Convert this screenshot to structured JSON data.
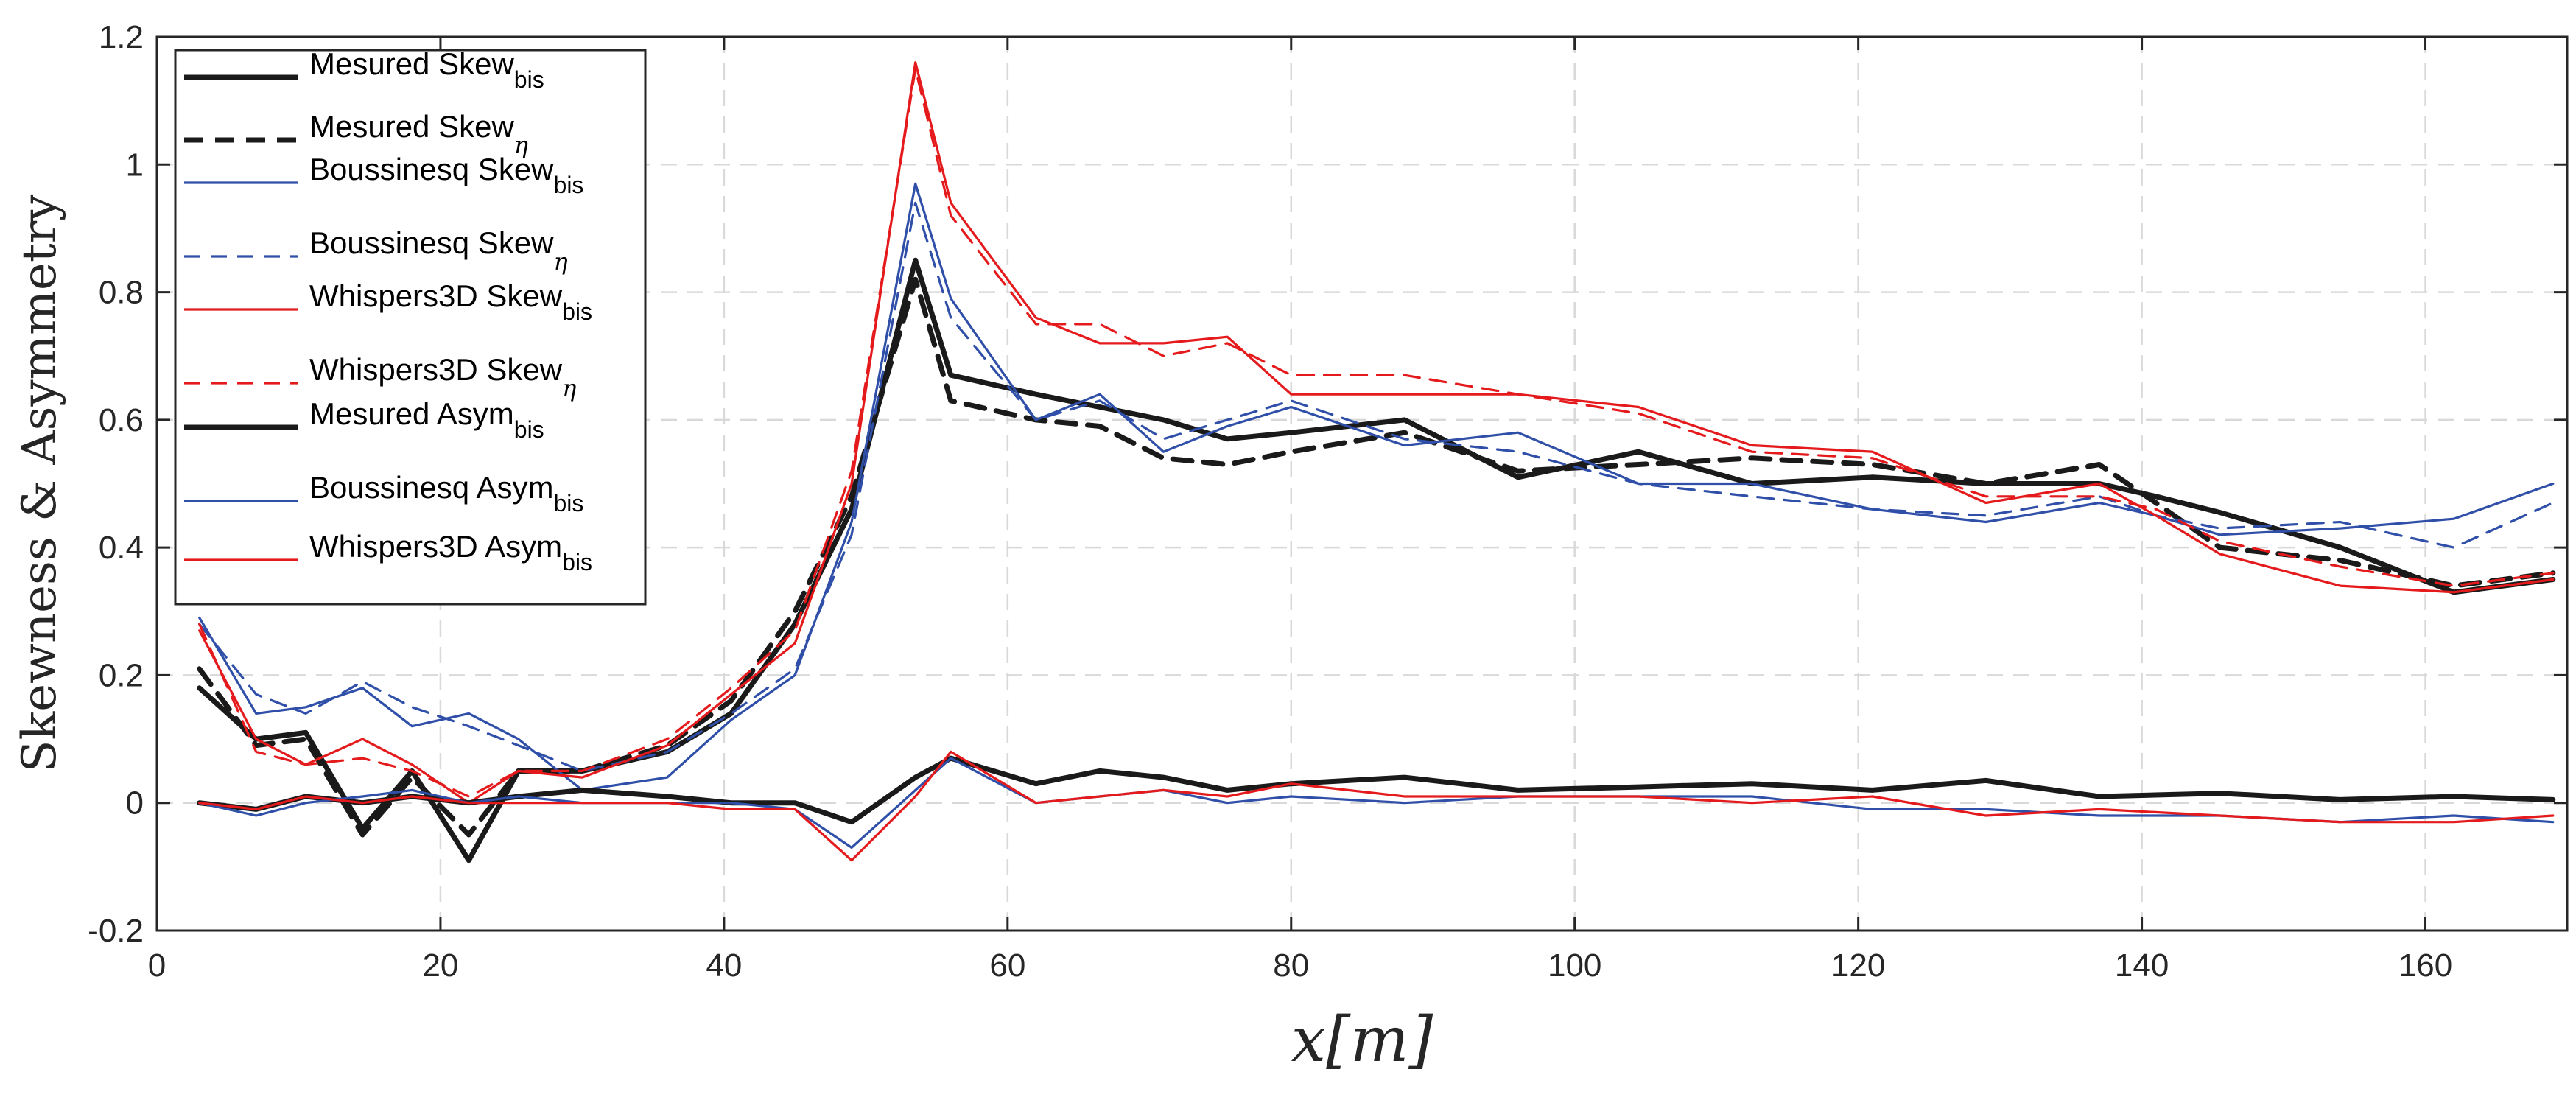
{
  "chart_data": {
    "type": "line",
    "title": "",
    "xlabel": "x[m]",
    "ylabel": "Skewness & Asymmetry",
    "xlim": [
      0,
      170
    ],
    "ylim": [
      -0.2,
      1.2
    ],
    "xticks": [
      "0",
      "20",
      "40",
      "60",
      "80",
      "100",
      "120",
      "140",
      "160"
    ],
    "xtick_values": [
      0,
      20,
      40,
      60,
      80,
      100,
      120,
      140,
      160
    ],
    "yticks": [
      "-0.2",
      "0",
      "0.2",
      "0.4",
      "0.6",
      "0.8",
      "1",
      "1.2"
    ],
    "ytick_values": [
      -0.2,
      0,
      0.2,
      0.4,
      0.6,
      0.8,
      1.0,
      1.2
    ],
    "grid": true,
    "legend_position": "top-left",
    "colors": {
      "measured": "#1a1a1a",
      "boussinesq": "#2f4fa8",
      "whispers": "#e41a1c",
      "grid": "#d9d9d9",
      "axis": "#262626"
    },
    "series": [
      {
        "name": "Mesured Skew",
        "sub": "bis",
        "color": "#1a1a1a",
        "dash": "solid",
        "width": "thick",
        "x": [
          3,
          7,
          10.5,
          14.5,
          18,
          22,
          25.5,
          30,
          36,
          40.5,
          45,
          49,
          53.5,
          56,
          62,
          66.5,
          71,
          75.5,
          80,
          88,
          96,
          104.5,
          112.5,
          121,
          129,
          137,
          141,
          145.5,
          154,
          162,
          169
        ],
        "values": [
          0.18,
          0.1,
          0.11,
          -0.04,
          0.05,
          -0.09,
          0.05,
          0.05,
          0.08,
          0.14,
          0.28,
          0.46,
          0.85,
          0.67,
          0.64,
          0.62,
          0.6,
          0.57,
          0.58,
          0.6,
          0.51,
          0.55,
          0.5,
          0.51,
          0.5,
          0.5,
          0.48,
          0.455,
          0.4,
          0.33,
          0.35
        ]
      },
      {
        "name": "Mesured Skew",
        "sub": "η",
        "color": "#1a1a1a",
        "dash": "dashed",
        "width": "thick",
        "x": [
          3,
          7,
          10.5,
          14.5,
          18,
          22,
          25.5,
          30,
          36,
          40.5,
          45,
          49,
          53.5,
          56,
          62,
          66.5,
          71,
          75.5,
          80,
          88,
          96,
          104.5,
          112.5,
          121,
          129,
          137,
          141,
          145.5,
          154,
          162,
          169
        ],
        "values": [
          0.21,
          0.09,
          0.1,
          -0.05,
          0.04,
          -0.05,
          0.05,
          0.05,
          0.09,
          0.16,
          0.3,
          0.48,
          0.82,
          0.63,
          0.6,
          0.59,
          0.54,
          0.53,
          0.55,
          0.58,
          0.52,
          0.53,
          0.54,
          0.53,
          0.5,
          0.53,
          0.47,
          0.4,
          0.38,
          0.34,
          0.36
        ]
      },
      {
        "name": "Boussinesq Skew",
        "sub": "bis",
        "color": "#2f4fa8",
        "dash": "solid",
        "width": "thin",
        "x": [
          3,
          7,
          10.5,
          14.5,
          18,
          22,
          25.5,
          30,
          36,
          40.5,
          45,
          49,
          53.5,
          56,
          62,
          66.5,
          71,
          75.5,
          80,
          88,
          96,
          104.5,
          112.5,
          121,
          129,
          137,
          141,
          145.5,
          154,
          162,
          169
        ],
        "values": [
          0.29,
          0.14,
          0.15,
          0.18,
          0.12,
          0.14,
          0.1,
          0.02,
          0.04,
          0.13,
          0.2,
          0.44,
          0.97,
          0.79,
          0.6,
          0.64,
          0.55,
          0.59,
          0.62,
          0.56,
          0.58,
          0.5,
          0.5,
          0.46,
          0.44,
          0.47,
          0.45,
          0.42,
          0.43,
          0.445,
          0.5
        ]
      },
      {
        "name": "Boussinesq Skew",
        "sub": "η",
        "color": "#2f4fa8",
        "dash": "dashed",
        "width": "thin",
        "x": [
          3,
          7,
          10.5,
          14.5,
          18,
          22,
          25.5,
          30,
          36,
          40.5,
          45,
          49,
          53.5,
          56,
          62,
          66.5,
          71,
          75.5,
          80,
          88,
          96,
          104.5,
          112.5,
          121,
          129,
          137,
          141,
          145.5,
          154,
          162,
          169
        ],
        "values": [
          0.28,
          0.17,
          0.14,
          0.19,
          0.15,
          0.12,
          0.09,
          0.05,
          0.08,
          0.14,
          0.21,
          0.42,
          0.94,
          0.76,
          0.6,
          0.63,
          0.57,
          0.6,
          0.63,
          0.57,
          0.55,
          0.5,
          0.48,
          0.46,
          0.45,
          0.48,
          0.45,
          0.43,
          0.44,
          0.4,
          0.47
        ]
      },
      {
        "name": "Whispers3D Skew",
        "sub": "bis",
        "color": "#e41a1c",
        "dash": "solid",
        "width": "thin",
        "x": [
          3,
          7,
          10.5,
          14.5,
          18,
          22,
          25.5,
          30,
          36,
          40.5,
          45,
          49,
          53.5,
          56,
          62,
          66.5,
          71,
          75.5,
          80,
          88,
          96,
          104.5,
          112.5,
          121,
          129,
          137,
          141,
          145.5,
          154,
          162,
          169
        ],
        "values": [
          0.27,
          0.1,
          0.06,
          0.1,
          0.06,
          0.0,
          0.05,
          0.04,
          0.09,
          0.17,
          0.25,
          0.5,
          1.16,
          0.94,
          0.76,
          0.72,
          0.72,
          0.73,
          0.64,
          0.64,
          0.64,
          0.62,
          0.56,
          0.55,
          0.47,
          0.5,
          0.45,
          0.39,
          0.34,
          0.33,
          0.35
        ]
      },
      {
        "name": "Whispers3D Skew",
        "sub": "η",
        "color": "#e41a1c",
        "dash": "dashed",
        "width": "thin",
        "x": [
          3,
          7,
          10.5,
          14.5,
          18,
          22,
          25.5,
          30,
          36,
          40.5,
          45,
          49,
          53.5,
          56,
          62,
          66.5,
          71,
          75.5,
          80,
          88,
          96,
          104.5,
          112.5,
          121,
          129,
          137,
          141,
          145.5,
          154,
          162,
          169
        ],
        "values": [
          0.28,
          0.08,
          0.06,
          0.07,
          0.05,
          0.01,
          0.05,
          0.05,
          0.1,
          0.18,
          0.27,
          0.52,
          1.15,
          0.92,
          0.75,
          0.75,
          0.7,
          0.72,
          0.67,
          0.67,
          0.64,
          0.61,
          0.55,
          0.54,
          0.48,
          0.48,
          0.46,
          0.41,
          0.37,
          0.34,
          0.36
        ]
      },
      {
        "name": "Mesured Asym",
        "sub": "bis",
        "color": "#1a1a1a",
        "dash": "solid",
        "width": "thick",
        "x": [
          3,
          7,
          10.5,
          14.5,
          18,
          22,
          25.5,
          30,
          36,
          40.5,
          45,
          49,
          53.5,
          56,
          62,
          66.5,
          71,
          75.5,
          80,
          88,
          96,
          104.5,
          112.5,
          121,
          129,
          137,
          145.5,
          154,
          162,
          169
        ],
        "values": [
          0.0,
          -0.01,
          0.01,
          0.0,
          0.01,
          0.0,
          0.01,
          0.02,
          0.01,
          0.0,
          0.0,
          -0.03,
          0.04,
          0.07,
          0.03,
          0.05,
          0.04,
          0.02,
          0.03,
          0.04,
          0.02,
          0.025,
          0.03,
          0.02,
          0.035,
          0.01,
          0.015,
          0.005,
          0.01,
          0.005
        ]
      },
      {
        "name": "Boussinesq Asym",
        "sub": "bis",
        "color": "#2f4fa8",
        "dash": "solid",
        "width": "thin",
        "x": [
          3,
          7,
          10.5,
          14.5,
          18,
          22,
          25.5,
          30,
          36,
          40.5,
          45,
          49,
          53.5,
          56,
          62,
          66.5,
          71,
          75.5,
          80,
          88,
          96,
          104.5,
          112.5,
          121,
          129,
          137,
          145.5,
          154,
          162,
          169
        ],
        "values": [
          0.0,
          -0.02,
          0.0,
          0.01,
          0.02,
          0.0,
          0.01,
          0.0,
          0.0,
          0.0,
          -0.01,
          -0.07,
          0.02,
          0.07,
          0.0,
          0.01,
          0.02,
          0.0,
          0.01,
          0.0,
          0.01,
          0.01,
          0.01,
          -0.01,
          -0.01,
          -0.02,
          -0.02,
          -0.03,
          -0.02,
          -0.03
        ]
      },
      {
        "name": "Whispers3D Asym",
        "sub": "bis",
        "color": "#e41a1c",
        "dash": "solid",
        "width": "thin",
        "x": [
          3,
          7,
          10.5,
          14.5,
          18,
          22,
          25.5,
          30,
          36,
          40.5,
          45,
          49,
          53.5,
          56,
          62,
          66.5,
          71,
          75.5,
          80,
          88,
          96,
          104.5,
          112.5,
          121,
          129,
          137,
          145.5,
          154,
          162,
          169
        ],
        "values": [
          0.0,
          -0.01,
          0.01,
          0.0,
          0.01,
          0.0,
          0.0,
          0.0,
          0.0,
          -0.01,
          -0.01,
          -0.09,
          0.01,
          0.08,
          0.0,
          0.01,
          0.02,
          0.01,
          0.03,
          0.01,
          0.01,
          0.01,
          0.0,
          0.01,
          -0.02,
          -0.01,
          -0.02,
          -0.03,
          -0.03,
          -0.02
        ]
      }
    ]
  }
}
